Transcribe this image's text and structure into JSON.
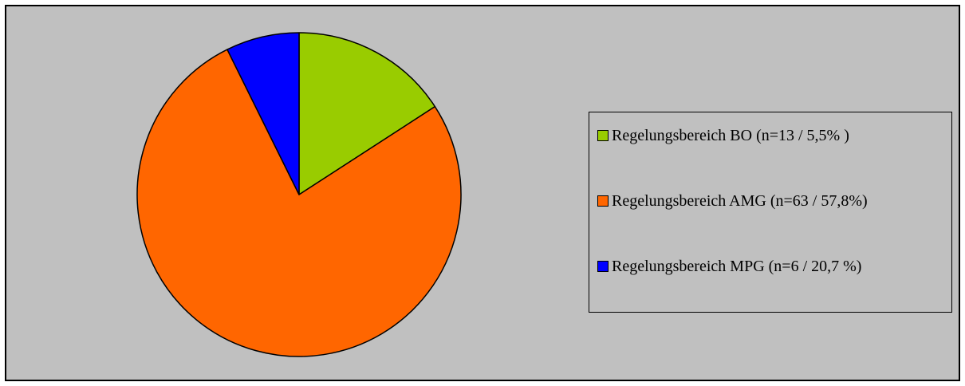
{
  "chart_data": {
    "type": "pie",
    "title": "",
    "slices": [
      {
        "label": "Regelungsbereich BO (n=13 / 5,5% )",
        "value": 13,
        "color": "#99cc00"
      },
      {
        "label": "Regelungsbereich AMG (n=63 / 57,8%)",
        "value": 63,
        "color": "#ff6600"
      },
      {
        "label": "Regelungsbereich MPG (n=6 / 20,7 %)",
        "value": 6,
        "color": "#0000ff"
      }
    ],
    "start_angle_deg": 0,
    "direction": "clockwise",
    "legend_position": "right"
  },
  "colors": {
    "plot_background": "#c0c0c0",
    "outline": "#000000"
  }
}
